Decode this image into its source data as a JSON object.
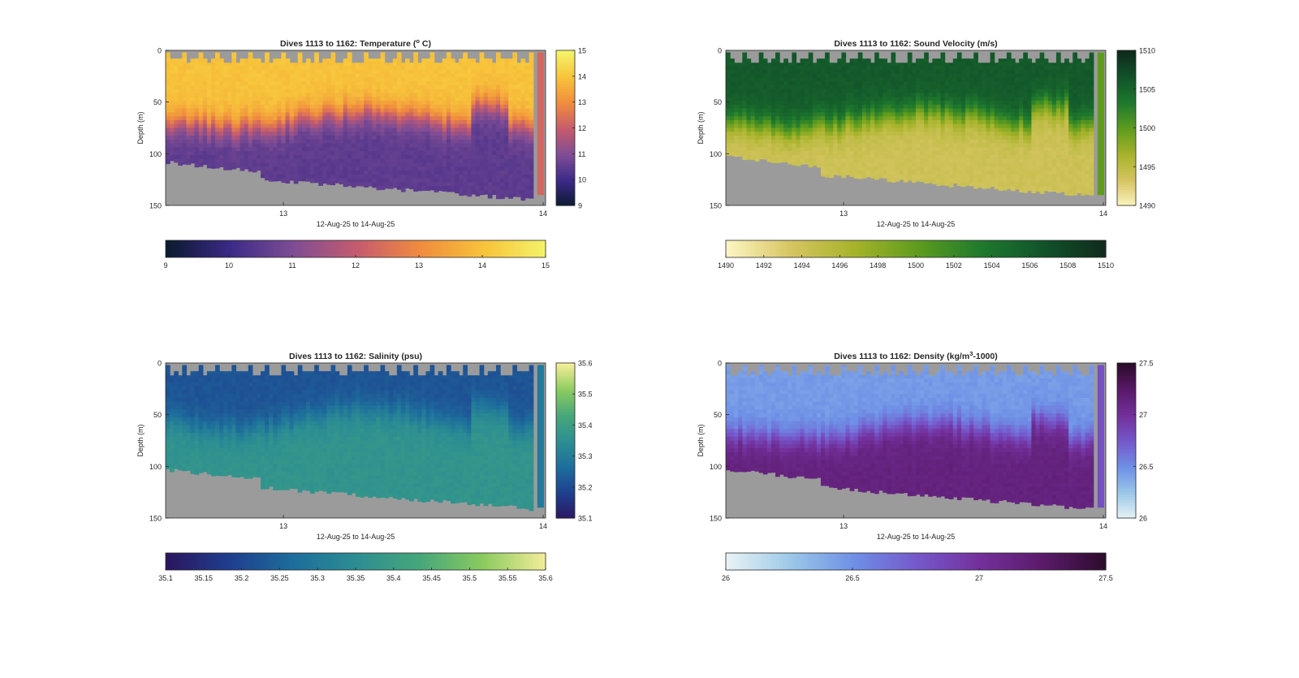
{
  "chart_data": [
    {
      "type": "heatmap",
      "variable": "temperature",
      "title_main": "Dives 1113 to 1162: Temperature (",
      "title_sup": "o",
      "title_end": " C)",
      "xlabel": "12-Aug-25 to 14-Aug-25",
      "ylabel": "Depth (m)",
      "ylim": [
        0,
        150
      ],
      "yticks": [
        "0",
        "50",
        "100",
        "150"
      ],
      "xticks": [
        "13",
        "14"
      ],
      "xtick_values": [
        0.31,
        1.0
      ],
      "clim": [
        9,
        15
      ],
      "cbar_ticks": [
        "9",
        "10",
        "11",
        "12",
        "13",
        "14",
        "15"
      ],
      "hbar_ticks": [
        "9",
        "10",
        "11",
        "12",
        "13",
        "14",
        "15"
      ],
      "colormap": [
        "#0b1a2f",
        "#3b2a88",
        "#7f4d94",
        "#c55b6e",
        "#f08c3e",
        "#f7c33a",
        "#f4f46a"
      ],
      "surface_value": 14.0,
      "deep_value": 10.5,
      "mixed_layer_depth_m": [
        60,
        75
      ],
      "bottom_depth_m": [
        108,
        145
      ]
    },
    {
      "type": "heatmap",
      "variable": "sound_velocity",
      "title_main": "Dives 1113 to 1162: Sound Velocity (m/s)",
      "title_sup": "",
      "title_end": "",
      "xlabel": "12-Aug-25 to 14-Aug-25",
      "ylabel": "Depth (m)",
      "ylim": [
        0,
        150
      ],
      "yticks": [
        "0",
        "50",
        "100",
        "150"
      ],
      "xticks": [
        "13",
        "14"
      ],
      "xtick_values": [
        0.31,
        1.0
      ],
      "clim": [
        1490,
        1510
      ],
      "cbar_ticks": [
        "1490",
        "1495",
        "1500",
        "1505",
        "1510"
      ],
      "hbar_ticks": [
        "1490",
        "1492",
        "1494",
        "1496",
        "1498",
        "1500",
        "1502",
        "1504",
        "1506",
        "1508",
        "1510"
      ],
      "colormap": [
        "#fdf5c2",
        "#d6c562",
        "#a7b32a",
        "#5f9c1e",
        "#1f7a2d",
        "#11522a",
        "#0f2a1c"
      ],
      "surface_value": 1506,
      "deep_value": 1494,
      "mixed_layer_depth_m": [
        60,
        75
      ],
      "bottom_depth_m": [
        103,
        142
      ]
    },
    {
      "type": "heatmap",
      "variable": "salinity",
      "title_main": "Dives 1113 to 1162: Salinity (psu)",
      "title_sup": "",
      "title_end": "",
      "xlabel": "12-Aug-25 to 14-Aug-25",
      "ylabel": "Depth (m)",
      "ylim": [
        0,
        150
      ],
      "yticks": [
        "0",
        "50",
        "100",
        "150"
      ],
      "xticks": [
        "13",
        "14"
      ],
      "xtick_values": [
        0.31,
        1.0
      ],
      "clim": [
        35.1,
        35.6
      ],
      "cbar_ticks": [
        "35.1",
        "35.2",
        "35.3",
        "35.4",
        "35.5",
        "35.6"
      ],
      "hbar_ticks": [
        "35.1",
        "35.15",
        "35.2",
        "35.25",
        "35.3",
        "35.35",
        "35.4",
        "35.45",
        "35.5",
        "35.55",
        "35.6"
      ],
      "colormap": [
        "#2a1660",
        "#1f3f8f",
        "#1d6e9c",
        "#2c8e92",
        "#46a77a",
        "#8ccb5f",
        "#f6ee9a"
      ],
      "surface_value": 35.22,
      "deep_value": 35.37,
      "mixed_layer_depth_m": [
        45,
        65
      ],
      "bottom_depth_m": [
        103,
        142
      ]
    },
    {
      "type": "heatmap",
      "variable": "density",
      "title_main": "Dives 1113 to 1162: Density (kg/m",
      "title_sup": "3",
      "title_end": "-1000)",
      "xlabel": "12-Aug-25 to 14-Aug-25",
      "ylabel": "Depth (m)",
      "ylim": [
        0,
        150
      ],
      "yticks": [
        "0",
        "50",
        "100",
        "150"
      ],
      "xticks": [
        "13",
        "14"
      ],
      "xtick_values": [
        0.31,
        1.0
      ],
      "clim": [
        26,
        27.5
      ],
      "cbar_ticks": [
        "26",
        "26.5",
        "27",
        "27.5"
      ],
      "hbar_ticks": [
        "26",
        "26.5",
        "27",
        "27.5"
      ],
      "colormap": [
        "#e8f3f5",
        "#9cc8e8",
        "#6e90e6",
        "#7558cb",
        "#73309b",
        "#5a1a6a",
        "#2b0b2a"
      ],
      "surface_value": 26.45,
      "deep_value": 27.15,
      "mixed_layer_depth_m": [
        60,
        75
      ],
      "bottom_depth_m": [
        103,
        142
      ]
    }
  ]
}
